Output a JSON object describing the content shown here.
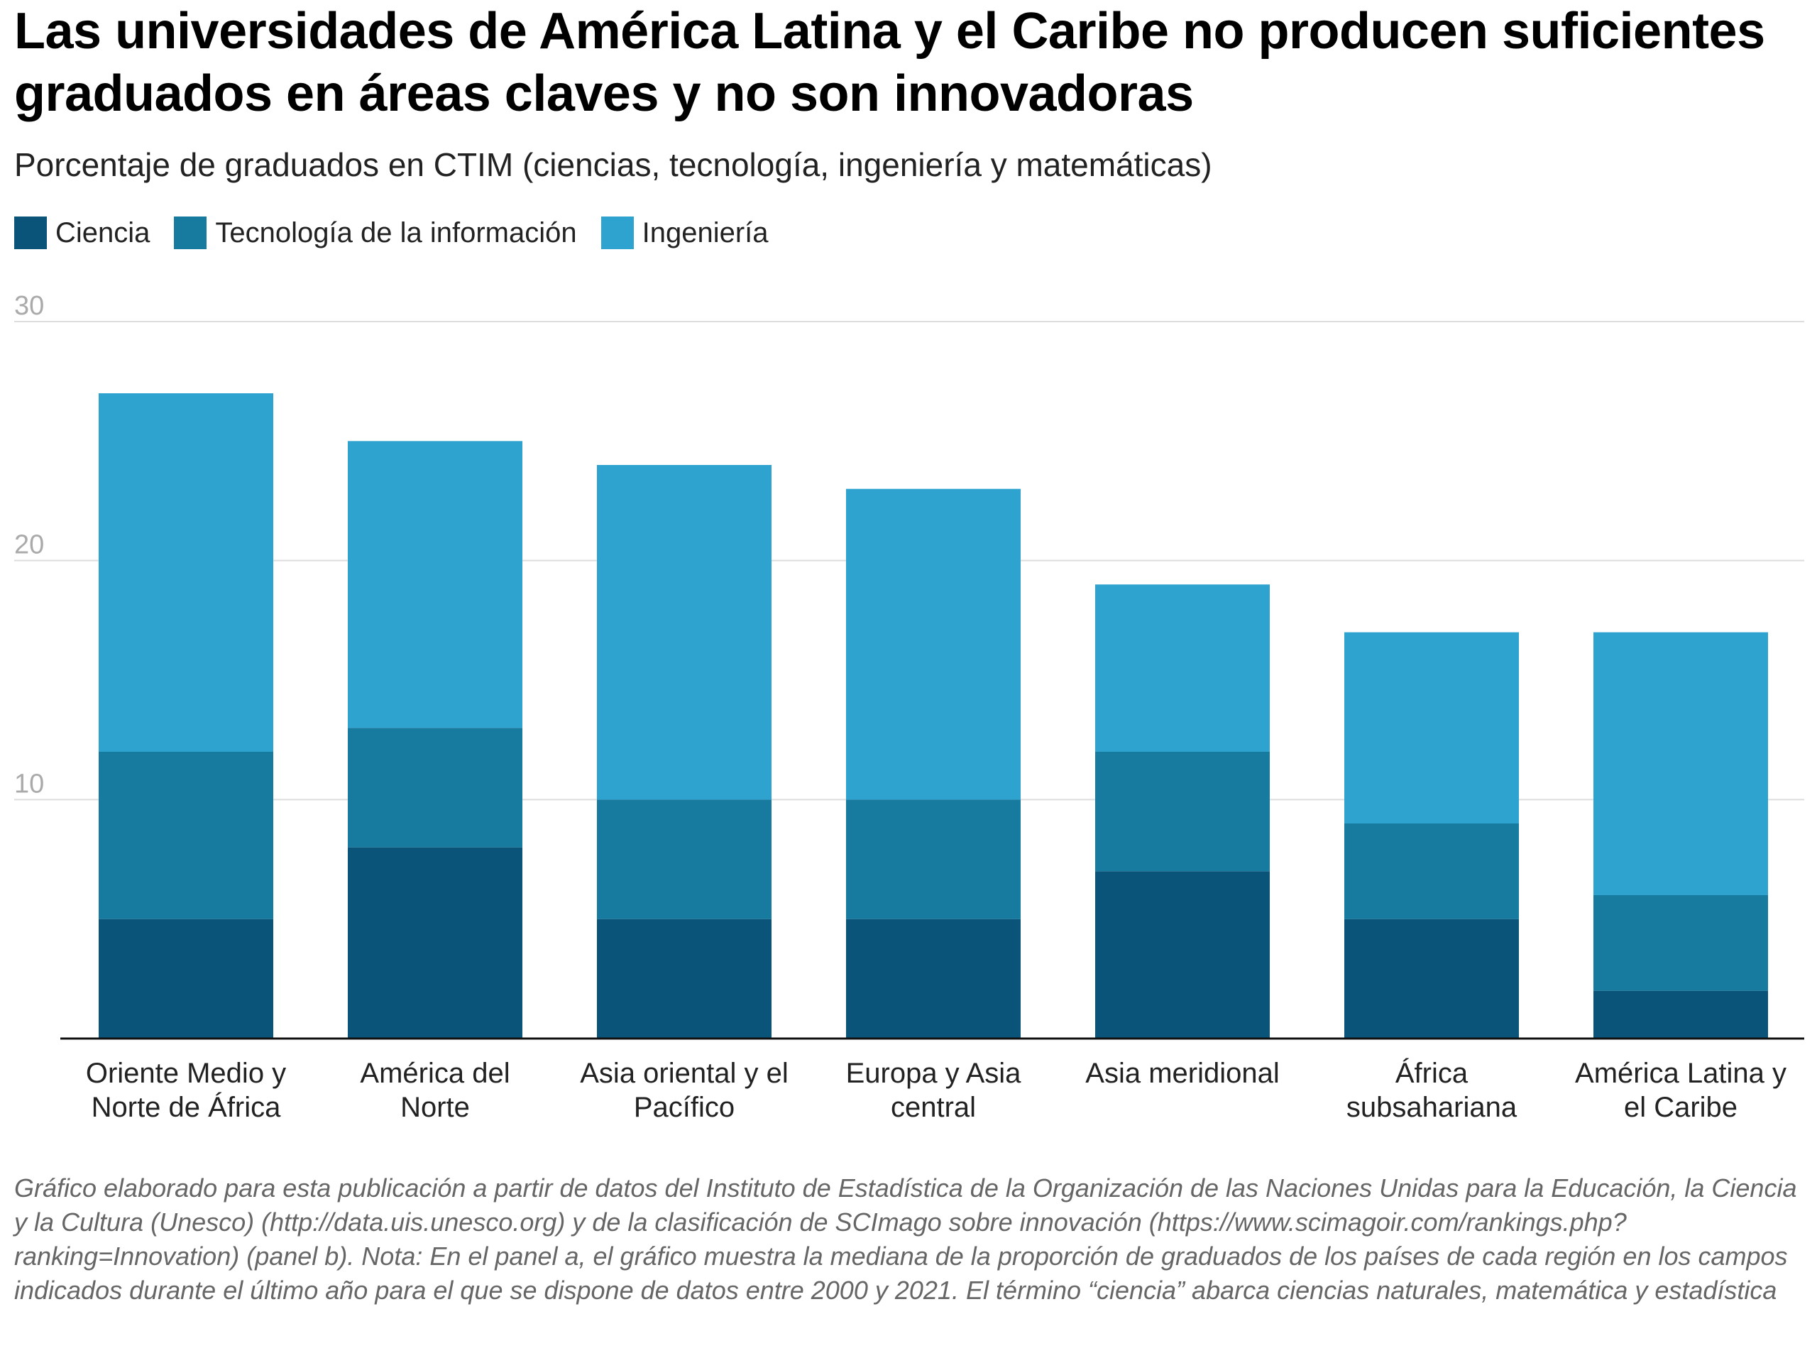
{
  "chart_data": {
    "type": "bar",
    "stacked": true,
    "title": "Las universidades de América Latina y el Caribe no producen suficientes graduados en áreas claves y no son innovadoras",
    "subtitle": "Porcentaje de graduados en CTIM (ciencias, tecnología, ingeniería y matemáticas)",
    "categories": [
      [
        "Oriente Medio y",
        "Norte de África"
      ],
      [
        "América del",
        "Norte"
      ],
      [
        "Asia oriental y el",
        "Pacífico"
      ],
      [
        "Europa y Asia",
        "central"
      ],
      [
        "Asia meridional"
      ],
      [
        "África",
        "subsahariana"
      ],
      [
        "América Latina y",
        "el Caribe"
      ]
    ],
    "series": [
      {
        "name": "Ciencia",
        "color": "#0b5479",
        "values": [
          5,
          8,
          5,
          5,
          7,
          5,
          2
        ]
      },
      {
        "name": "Tecnología de la información",
        "color": "#177a9f",
        "values": [
          7,
          5,
          5,
          5,
          5,
          4,
          4
        ]
      },
      {
        "name": "Ingeniería",
        "color": "#2ea3cf",
        "values": [
          15,
          12,
          14,
          13,
          7,
          8,
          11
        ]
      }
    ],
    "ylim": [
      0,
      30
    ],
    "yticks": [
      "10",
      "20",
      "30"
    ],
    "grid": true,
    "legend_position": "top-left",
    "note": "Gráfico elaborado para esta publicación a partir de datos del Instituto de Estadística de la Organización de las Naciones Unidas para la Educación, la Ciencia y la Cultura (Unesco) (http://data.uis.unesco.org) y de la clasificación de SCImago sobre innovación (https://www.scimagoir.com/rankings.php?ranking=Innovation) (panel b). Nota: En el panel a, el gráfico muestra la mediana de la proporción de graduados de los países de cada región en los campos indicados durante el último año para el que se dispone de datos entre 2000 y 2021. El término “ciencia” abarca ciencias naturales, matemática y estadística"
  }
}
